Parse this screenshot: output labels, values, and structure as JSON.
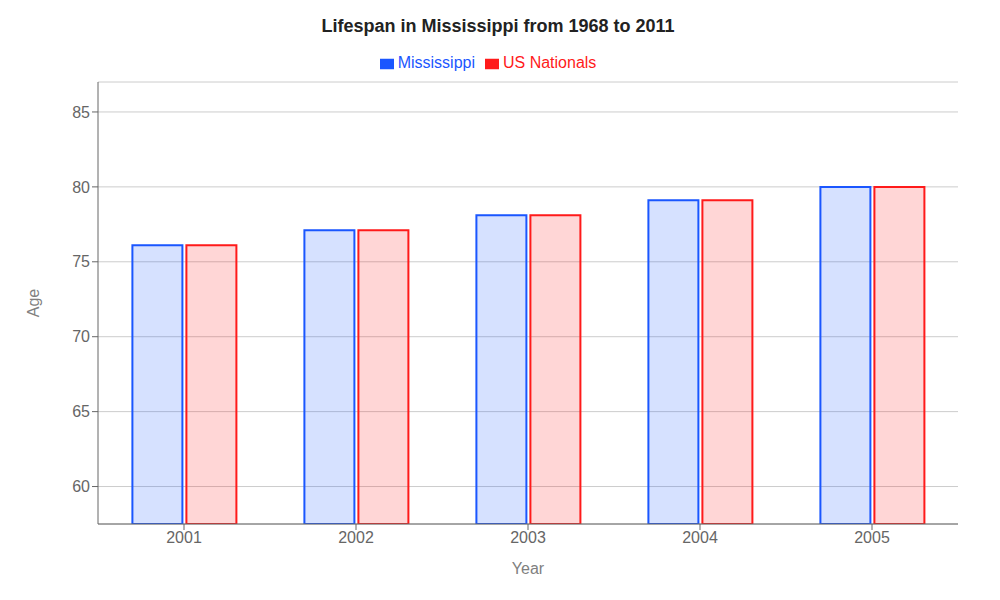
{
  "chart_data": {
    "type": "bar",
    "title": "Lifespan in Mississippi from 1968 to 2011",
    "x_label": "Year",
    "y_label": "Age",
    "categories": [
      "2001",
      "2002",
      "2003",
      "2004",
      "2005"
    ],
    "series": [
      {
        "name": "Mississippi",
        "color": "#1a56ff",
        "values": [
          76.1,
          77.1,
          78.1,
          79.1,
          80.0
        ]
      },
      {
        "name": "US Nationals",
        "color": "#ff1a1a",
        "values": [
          76.1,
          77.1,
          78.1,
          79.1,
          80.0
        ]
      }
    ],
    "ylim": [
      57.5,
      87
    ],
    "yticks": [
      60,
      65,
      70,
      75,
      80,
      85
    ],
    "grid": true,
    "legend": "top"
  }
}
